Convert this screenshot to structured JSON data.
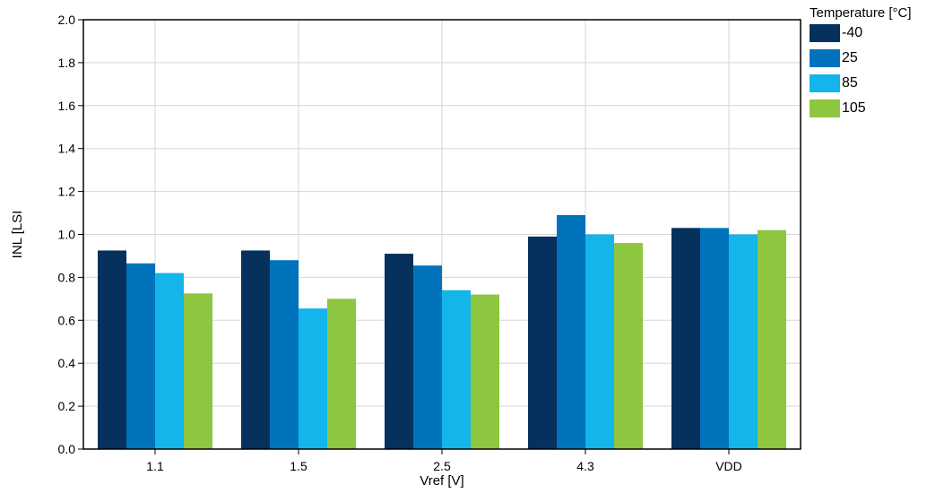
{
  "chart_data": {
    "type": "bar",
    "xlabel": "Vref [V]",
    "ylabel": "INL [LSI",
    "categories": [
      "1.1",
      "1.5",
      "2.5",
      "4.3",
      "VDD"
    ],
    "ylim": [
      0,
      2.0
    ],
    "yticks": [
      "0.0",
      "0.2",
      "0.4",
      "0.6",
      "0.8",
      "1.0",
      "1.2",
      "1.4",
      "1.6",
      "1.8",
      "2.0"
    ],
    "grid": true,
    "legend": {
      "title": "Temperature [°C]",
      "placement": "top-right-outside"
    },
    "series": [
      {
        "name": "-40",
        "color": "#06315c",
        "values": [
          0.925,
          0.925,
          0.91,
          0.99,
          1.03
        ]
      },
      {
        "name": "25",
        "color": "#0173bd",
        "values": [
          0.865,
          0.88,
          0.855,
          1.09,
          1.03
        ]
      },
      {
        "name": "85",
        "color": "#13b5ea",
        "values": [
          0.82,
          0.655,
          0.74,
          1.0,
          1.0
        ]
      },
      {
        "name": "105",
        "color": "#8dc63f",
        "values": [
          0.725,
          0.7,
          0.72,
          0.96,
          1.02
        ]
      }
    ]
  }
}
